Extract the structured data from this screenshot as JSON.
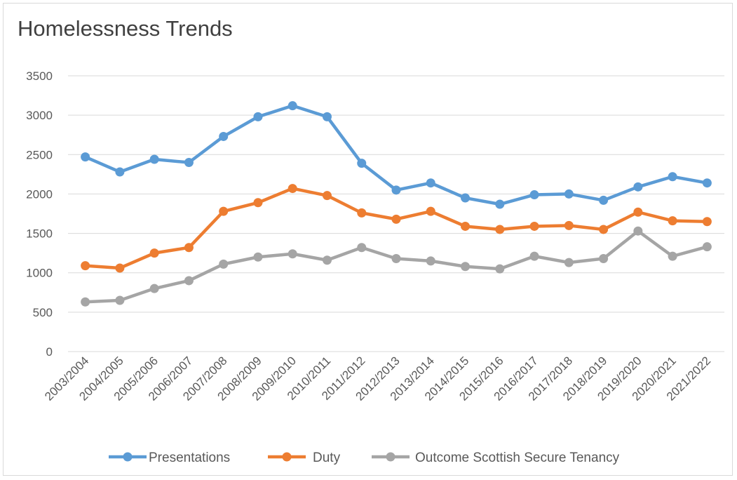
{
  "chart_data": {
    "type": "line",
    "title": "Homelessness Trends",
    "xlabel": "",
    "ylabel": "",
    "categories": [
      "2003/2004",
      "2004/2005",
      "2005/2006",
      "2006/2007",
      "2007/2008",
      "2008/2009",
      "2009/2010",
      "2010/2011",
      "2011/2012",
      "2012/2013",
      "2013/2014",
      "2014/2015",
      "2015/2016",
      "2016/2017",
      "2017/2018",
      "2018/2019",
      "2019/2020",
      "2020/2021",
      "2021/2022"
    ],
    "ylim": [
      0,
      3500
    ],
    "yticks": [
      "0",
      "500",
      "1000",
      "1500",
      "2000",
      "2500",
      "3000",
      "3500"
    ],
    "grid": true,
    "legend_position": "bottom",
    "series": [
      {
        "name": "Presentations",
        "color": "#5b9bd5",
        "values": [
          2470,
          2280,
          2440,
          2400,
          2730,
          2980,
          3120,
          2980,
          2390,
          2050,
          2140,
          1950,
          1870,
          1990,
          2000,
          1920,
          2090,
          2220,
          2140
        ]
      },
      {
        "name": "Duty",
        "color": "#ed7d31",
        "values": [
          1090,
          1060,
          1250,
          1320,
          1780,
          1890,
          2070,
          1980,
          1760,
          1680,
          1780,
          1590,
          1550,
          1590,
          1600,
          1550,
          1770,
          1660,
          1650
        ]
      },
      {
        "name": "Outcome Scottish Secure Tenancy",
        "color": "#a5a5a5",
        "values": [
          630,
          650,
          800,
          900,
          1110,
          1200,
          1240,
          1160,
          1320,
          1180,
          1150,
          1080,
          1050,
          1210,
          1130,
          1180,
          1530,
          1210,
          1330
        ]
      }
    ]
  }
}
